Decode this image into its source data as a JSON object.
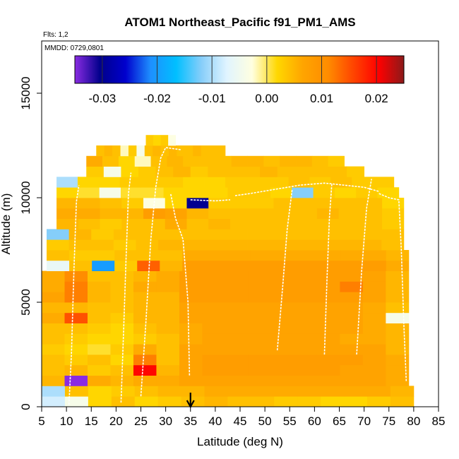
{
  "chart_data": {
    "type": "heatmap",
    "title": "ATOM1 Northeast_Pacific f91_PM1_AMS",
    "annotations": {
      "flights": "Flts: 1,2",
      "dates": "MMDD: 0729,0801"
    },
    "xlabel": "Latitude (deg N)",
    "ylabel": "Altitude (m)",
    "xlim": [
      5,
      85
    ],
    "ylim": [
      0,
      17500
    ],
    "x_ticks": [
      "5",
      "10",
      "15",
      "20",
      "25",
      "30",
      "35",
      "40",
      "45",
      "50",
      "55",
      "60",
      "65",
      "70",
      "75",
      "80",
      "85"
    ],
    "y_ticks": [
      "0",
      "5000",
      "10000",
      "15000"
    ],
    "colorbar": {
      "range": [
        -0.035,
        0.025
      ],
      "tick_values": [
        -0.03,
        -0.02,
        -0.01,
        0.0,
        0.01,
        0.02
      ],
      "tick_labels": [
        "-0.03",
        "-0.02",
        "-0.01",
        "0.00",
        "0.01",
        "0.02"
      ],
      "colors": [
        "#8a2be2",
        "#00008b",
        "#0000cd",
        "#1e90ff",
        "#00bfff",
        "#87cefa",
        "#e0f4ff",
        "#ffffe0",
        "#ffd700",
        "#ffa500",
        "#ff8c00",
        "#ff4500",
        "#ff0000",
        "#8b1a1a"
      ]
    },
    "marker": {
      "x": 35,
      "description": "arrow"
    },
    "rows": [
      {
        "y0": 0,
        "y1": 500,
        "x0": 5,
        "x1": 80,
        "values": [
          -0.008,
          -0.004,
          0.002,
          0.004,
          0.002,
          0.003,
          0.004,
          0.005,
          0.004,
          0.004,
          0.003,
          0.003,
          0.002,
          0.002,
          0.003,
          0.004
        ]
      },
      {
        "y0": 500,
        "y1": 1000,
        "x0": 5,
        "x1": 80,
        "values": [
          -0.01,
          0.004,
          0.002,
          0.003,
          0.004,
          0.005,
          0.005,
          0.006,
          0.006,
          0.006,
          0.006,
          0.006,
          0.006,
          0.006,
          0.006,
          0.005
        ]
      },
      {
        "y0": 1000,
        "y1": 1500,
        "x0": 5,
        "x1": 79,
        "values": [
          0.005,
          -0.035,
          0.006,
          0.005,
          0.006,
          0.006,
          0.007,
          0.007,
          0.007,
          0.007,
          0.007,
          0.007,
          0.007,
          0.007,
          0.007,
          0.006
        ]
      },
      {
        "y0": 1500,
        "y1": 2000,
        "x0": 5,
        "x1": 79,
        "values": [
          0.004,
          0.005,
          0.003,
          0.004,
          0.02,
          0.005,
          0.007,
          0.008,
          0.008,
          0.008,
          0.008,
          0.008,
          0.008,
          0.007,
          0.007,
          0.006
        ]
      },
      {
        "y0": 2000,
        "y1": 2500,
        "x0": 5,
        "x1": 79,
        "values": [
          0.004,
          0.003,
          0.004,
          0.002,
          0.012,
          0.004,
          0.007,
          0.008,
          0.008,
          0.008,
          0.008,
          0.008,
          0.008,
          0.008,
          0.007,
          0.006
        ]
      },
      {
        "y0": 2500,
        "y1": 3000,
        "x0": 5,
        "x1": 79,
        "values": [
          0.003,
          0.002,
          0.001,
          0.003,
          0.006,
          0.004,
          0.007,
          0.007,
          0.007,
          0.007,
          0.007,
          0.007,
          0.007,
          0.007,
          0.007,
          0.005
        ]
      },
      {
        "y0": 3000,
        "y1": 3500,
        "x0": 5,
        "x1": 79,
        "values": [
          0.004,
          0.003,
          0.002,
          0.002,
          0.003,
          0.004,
          0.006,
          0.007,
          0.007,
          0.007,
          0.007,
          0.007,
          0.007,
          0.006,
          0.006,
          0.005
        ]
      },
      {
        "y0": 3500,
        "y1": 4000,
        "x0": 5,
        "x1": 79,
        "values": [
          0.004,
          0.004,
          0.003,
          0.002,
          0.004,
          0.005,
          0.006,
          0.007,
          0.007,
          0.007,
          0.007,
          0.007,
          0.007,
          0.007,
          0.006,
          0.005
        ]
      },
      {
        "y0": 4000,
        "y1": 4500,
        "x0": 5,
        "x1": 79,
        "values": [
          0.006,
          0.015,
          0.004,
          0.003,
          0.005,
          0.005,
          0.007,
          0.007,
          0.007,
          0.007,
          0.007,
          0.007,
          0.007,
          0.007,
          0.006,
          -0.004
        ]
      },
      {
        "y0": 4500,
        "y1": 5000,
        "x0": 5,
        "x1": 79,
        "values": [
          0.005,
          0.005,
          0.004,
          0.004,
          0.005,
          0.005,
          0.007,
          0.007,
          0.007,
          0.007,
          0.007,
          0.007,
          0.007,
          0.007,
          0.006,
          0.004
        ]
      },
      {
        "y0": 5000,
        "y1": 5500,
        "x0": 5,
        "x1": 79,
        "values": [
          0.007,
          0.012,
          0.005,
          0.004,
          0.005,
          0.005,
          0.008,
          0.008,
          0.008,
          0.008,
          0.008,
          0.008,
          0.008,
          0.008,
          0.007,
          0.005
        ]
      },
      {
        "y0": 5500,
        "y1": 6000,
        "x0": 5,
        "x1": 79,
        "values": [
          0.006,
          0.012,
          0.005,
          0.004,
          0.006,
          0.006,
          0.008,
          0.008,
          0.008,
          0.008,
          0.008,
          0.008,
          0.008,
          0.012,
          0.007,
          0.005
        ]
      },
      {
        "y0": 6000,
        "y1": 6500,
        "x0": 5,
        "x1": 79,
        "values": [
          0.006,
          0.011,
          0.004,
          0.004,
          0.005,
          0.006,
          0.008,
          0.008,
          0.008,
          0.008,
          0.008,
          0.008,
          0.008,
          0.008,
          0.007,
          0.005
        ]
      },
      {
        "y0": 6500,
        "y1": 7000,
        "x0": 6,
        "x1": 79,
        "values": [
          -0.006,
          0.004,
          -0.02,
          0.003,
          0.014,
          0.005,
          0.008,
          0.008,
          0.008,
          0.008,
          0.008,
          0.008,
          0.008,
          0.008,
          0.008,
          0.006
        ]
      },
      {
        "y0": 7000,
        "y1": 7500,
        "x0": 6,
        "x1": 79,
        "values": [
          0.004,
          0.003,
          0.003,
          0.004,
          0.004,
          0.004,
          0.006,
          0.006,
          0.006,
          0.006,
          0.006,
          0.006,
          0.006,
          0.006,
          0.006,
          0.005
        ]
      },
      {
        "y0": 7500,
        "y1": 8000,
        "x0": 6,
        "x1": 78,
        "values": [
          0.003,
          0.004,
          0.004,
          0.003,
          0.004,
          0.005,
          0.005,
          0.005,
          0.005,
          0.005,
          0.005,
          0.005,
          0.005,
          0.005,
          0.005,
          0.004
        ]
      },
      {
        "y0": 8000,
        "y1": 8500,
        "x0": 6,
        "x1": 78,
        "values": [
          -0.012,
          0.005,
          0.003,
          0.004,
          0.004,
          0.004,
          0.004,
          0.004,
          0.004,
          0.004,
          0.004,
          0.004,
          0.004,
          0.004,
          0.004,
          0.004
        ]
      },
      {
        "y0": 8500,
        "y1": 9000,
        "x0": 8,
        "x1": 78,
        "values": [
          0.005,
          0.004,
          0.003,
          0.004,
          0.004,
          0.006,
          0.004,
          0.005,
          0.004,
          0.004,
          0.004,
          0.004,
          0.004,
          0.004,
          0.004,
          0.003
        ]
      },
      {
        "y0": 9000,
        "y1": 9500,
        "x0": 8,
        "x1": 78,
        "values": [
          0.006,
          0.006,
          0.005,
          0.005,
          0.008,
          0.007,
          0.005,
          0.004,
          0.004,
          0.004,
          0.004,
          0.004,
          0.005,
          0.004,
          0.004,
          0.003
        ]
      },
      {
        "y0": 9500,
        "y1": 10000,
        "x0": 8,
        "x1": 78,
        "values": [
          0.005,
          0.005,
          0.004,
          0.003,
          -0.003,
          0.002,
          -0.03,
          0.003,
          0.003,
          0.003,
          0.004,
          0.004,
          0.004,
          0.004,
          0.004,
          0.002
        ]
      },
      {
        "y0": 10000,
        "y1": 10500,
        "x0": 8,
        "x1": 77,
        "values": [
          0.002,
          0.001,
          -0.004,
          0.001,
          0.001,
          0.002,
          0.002,
          0.002,
          0.003,
          0.003,
          0.002,
          -0.012,
          0.003,
          0.002,
          0.003,
          0.002
        ]
      },
      {
        "y0": 10500,
        "y1": 11000,
        "x0": 8,
        "x1": 76,
        "values": [
          -0.01,
          0.002,
          0.002,
          0.003,
          0.003,
          0.003,
          0.002,
          0.002,
          0.003,
          0.003,
          0.003,
          0.004,
          0.003,
          0.004,
          0.003,
          0.003
        ]
      },
      {
        "y0": 11000,
        "y1": 11500,
        "x0": 14,
        "x1": 70,
        "values": [
          0.003,
          -0.004,
          0.002,
          0.003,
          0.004,
          0.005,
          0.003,
          0.004,
          0.004,
          0.004,
          0.005,
          0.004,
          0.004,
          0.004,
          0.004,
          0.003
        ]
      },
      {
        "y0": 11500,
        "y1": 12000,
        "x0": 14,
        "x1": 66,
        "values": [
          0.006,
          0.004,
          0.002,
          -0.002,
          0.004,
          0.005,
          0.004,
          0.004,
          0.004,
          0.005,
          0.005,
          0.004,
          0.005,
          0.005,
          0.004,
          0.003
        ]
      },
      {
        "y0": 12000,
        "y1": 12500,
        "x0": 16,
        "x1": 42,
        "values": [
          0.004,
          0.005,
          0.004,
          -0.002,
          0.003,
          -0.004,
          0.004,
          0.005,
          0.004,
          0.005,
          0.004,
          0.004,
          0.005,
          0.004,
          0.004,
          0.004
        ]
      },
      {
        "y0": 12500,
        "y1": 13000,
        "x0": 26,
        "x1": 32,
        "values": [
          0.003,
          0.002,
          0.003,
          -0.003
        ]
      }
    ],
    "flight_tracks": [
      [
        [
          10.5,
          100
        ],
        [
          11,
          2500
        ],
        [
          11.5,
          6500
        ],
        [
          12,
          9800
        ],
        [
          12.5,
          10600
        ]
      ],
      [
        [
          21,
          200
        ],
        [
          21.5,
          3500
        ],
        [
          22,
          7000
        ],
        [
          22.5,
          10200
        ],
        [
          23,
          11200
        ]
      ],
      [
        [
          25,
          500
        ],
        [
          26,
          4000
        ],
        [
          27,
          8000
        ],
        [
          28,
          10500
        ],
        [
          29,
          11900
        ],
        [
          30,
          12400
        ],
        [
          33,
          12300
        ]
      ],
      [
        [
          34.8,
          1500
        ],
        [
          34.5,
          5000
        ],
        [
          33.5,
          8000
        ],
        [
          32,
          9000
        ],
        [
          31,
          10200
        ]
      ],
      [
        [
          35,
          9900
        ],
        [
          40,
          9850
        ],
        [
          43,
          9900
        ]
      ],
      [
        [
          44,
          10100
        ],
        [
          47,
          10200
        ],
        [
          52,
          10400
        ],
        [
          57,
          10600
        ],
        [
          62,
          10700
        ],
        [
          66,
          10600
        ],
        [
          70,
          10500
        ],
        [
          73,
          10300
        ]
      ],
      [
        [
          52.5,
          2700
        ],
        [
          53.5,
          5500
        ],
        [
          54.5,
          8500
        ],
        [
          55.5,
          10400
        ]
      ],
      [
        [
          62,
          2500
        ],
        [
          62.5,
          6000
        ],
        [
          63,
          9000
        ],
        [
          63.5,
          10700
        ]
      ],
      [
        [
          68.5,
          2500
        ],
        [
          69.5,
          6500
        ],
        [
          70.5,
          9500
        ],
        [
          71.5,
          10900
        ]
      ],
      [
        [
          73,
          10200
        ],
        [
          75,
          10000
        ],
        [
          77,
          9900
        ],
        [
          77.5,
          7500
        ],
        [
          78,
          4000
        ],
        [
          78.5,
          1200
        ]
      ]
    ]
  }
}
